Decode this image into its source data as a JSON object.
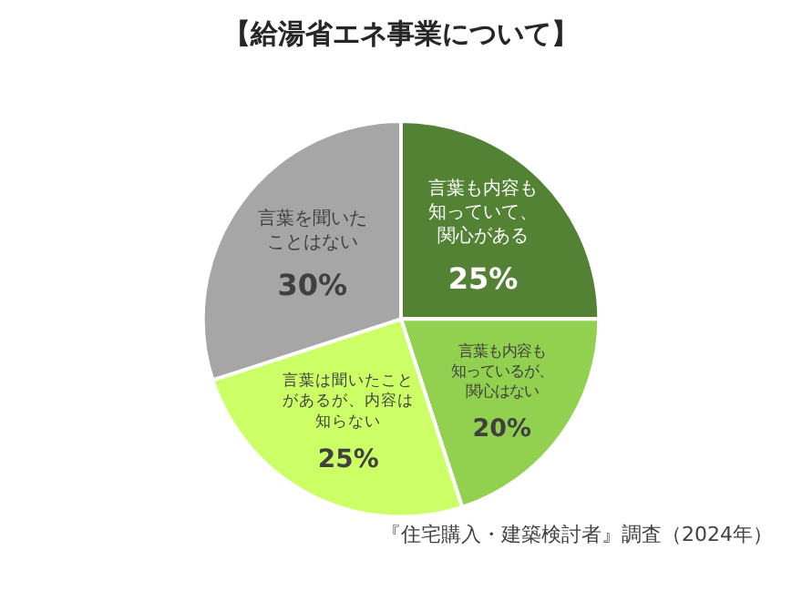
{
  "chart_data": {
    "type": "pie",
    "title": "【給湯省エネ事業について】",
    "categories": [
      "言葉も内容も知っていて、関心がある",
      "言葉も内容も知っているが、関心はない",
      "言葉は聞いたことがあるが、内容は知らない",
      "言葉を聞いたことはない"
    ],
    "values": [
      25,
      20,
      25,
      30
    ],
    "value_labels": [
      "25%",
      "20%",
      "25%",
      "30%"
    ],
    "colors": [
      "#548235",
      "#92d050",
      "#ccff66",
      "#a6a6a6"
    ],
    "annotations": [
      "『住宅購入・建築検討者』調査（2024年）"
    ]
  }
}
